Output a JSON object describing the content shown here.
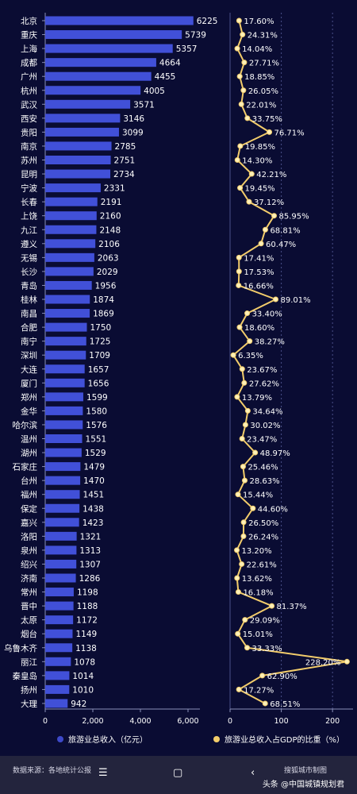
{
  "chart_data": [
    {
      "type": "bar",
      "orientation": "horizontal",
      "categories": [
        "北京",
        "重庆",
        "上海",
        "成都",
        "广州",
        "杭州",
        "武汉",
        "西安",
        "贵阳",
        "南京",
        "苏州",
        "昆明",
        "宁波",
        "长春",
        "上饶",
        "九江",
        "遵义",
        "无锡",
        "长沙",
        "青岛",
        "桂林",
        "南昌",
        "合肥",
        "南宁",
        "深圳",
        "大连",
        "厦门",
        "郑州",
        "金华",
        "哈尔滨",
        "温州",
        "湖州",
        "石家庄",
        "台州",
        "福州",
        "保定",
        "嘉兴",
        "洛阳",
        "泉州",
        "绍兴",
        "济南",
        "常州",
        "晋中",
        "太原",
        "烟台",
        "乌鲁木齐",
        "丽江",
        "秦皇岛",
        "扬州",
        "大理"
      ],
      "series": [
        {
          "name": "旅游业总收入（亿元）",
          "values": [
            6225,
            5739,
            5357,
            4664,
            4455,
            4005,
            3571,
            3146,
            3099,
            2785,
            2751,
            2734,
            2331,
            2191,
            2160,
            2148,
            2106,
            2063,
            2029,
            1956,
            1874,
            1869,
            1750,
            1725,
            1709,
            1657,
            1656,
            1599,
            1580,
            1576,
            1551,
            1529,
            1479,
            1470,
            1451,
            1438,
            1423,
            1321,
            1313,
            1307,
            1286,
            1198,
            1188,
            1172,
            1149,
            1138,
            1078,
            1014,
            1010,
            942
          ]
        }
      ],
      "xlim": [
        0,
        6500
      ],
      "xticks": [
        "0",
        "2,000",
        "4,000",
        "6,000"
      ],
      "colors": {
        "bar": "#4150d8",
        "label": "#ffffff"
      }
    },
    {
      "type": "line",
      "orientation": "vertical",
      "series": [
        {
          "name": "旅游业总收入占GDP的比重（%）",
          "values": [
            17.6,
            24.31,
            14.04,
            27.71,
            18.85,
            26.05,
            22.01,
            33.75,
            76.71,
            19.85,
            14.3,
            42.21,
            19.45,
            37.12,
            85.95,
            68.81,
            60.47,
            17.41,
            17.53,
            16.66,
            89.01,
            33.4,
            18.6,
            38.27,
            6.35,
            23.67,
            27.62,
            13.79,
            34.64,
            30.02,
            23.47,
            48.97,
            25.46,
            28.63,
            15.44,
            44.6,
            26.5,
            26.24,
            13.2,
            22.61,
            13.62,
            16.18,
            81.37,
            29.09,
            15.01,
            33.33,
            228.2,
            62.9,
            17.27,
            68.51
          ]
        }
      ],
      "value_labels": [
        "17.60%",
        "24.31%",
        "14.04%",
        "27.71%",
        "18.85%",
        "26.05%",
        "22.01%",
        "33.75%",
        "76.71%",
        "19.85%",
        "14.30%",
        "42.21%",
        "19.45%",
        "37.12%",
        "85.95%",
        "68.81%",
        "60.47%",
        "17.41%",
        "17.53%",
        "16.66%",
        "89.01%",
        "33.40%",
        "18.60%",
        "38.27%",
        "6.35%",
        "23.67%",
        "27.62%",
        "13.79%",
        "34.64%",
        "30.02%",
        "23.47%",
        "48.97%",
        "25.46%",
        "28.63%",
        "15.44%",
        "44.60%",
        "26.50%",
        "26.24%",
        "13.20%",
        "22.61%",
        "13.62%",
        "16.18%",
        "81.37%",
        "29.09%",
        "15.01%",
        "33.33%",
        "228.20%",
        "62.90%",
        "17.27%",
        "68.51%"
      ],
      "xlim": [
        0,
        240
      ],
      "xticks": [
        "0",
        "100",
        "200"
      ],
      "grid": true,
      "colors": {
        "line": "#f2cc6b",
        "point": "#fff0b8",
        "label": "#ffffff"
      }
    }
  ],
  "legend": {
    "bar_label": "旅游业总收入（亿元）",
    "line_label": "旅游业总收入占GDP的比重（%）",
    "bar_color": "#3d49c9",
    "line_color": "#f3cd6a"
  },
  "footer": {
    "source": "数据来源：各地统计公报",
    "credit": "搜狐城市制图",
    "watermark": "头条 @中国城镇规划君",
    "nav_menu": "☰",
    "nav_home": "▢",
    "nav_back": "‹"
  }
}
